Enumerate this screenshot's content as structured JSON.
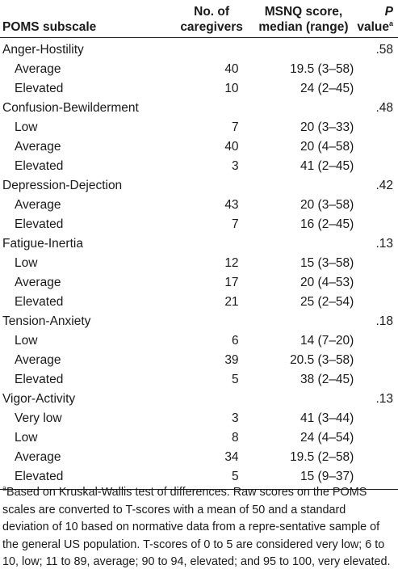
{
  "header": {
    "subscale": "POMS subscale",
    "caregivers_line1": "No. of",
    "caregivers_line2": "caregivers",
    "msnq_line1": "MSNQ score,",
    "msnq_line2": "median (range)",
    "p_italic": "P",
    "p_rest": " value",
    "p_mark": "a"
  },
  "rows": [
    {
      "label": "Anger-Hostility",
      "n": "",
      "msnq": "",
      "p": ".58",
      "sub": false
    },
    {
      "label": "Average",
      "n": "40",
      "msnq": "19.5 (3–58)",
      "p": "",
      "sub": true
    },
    {
      "label": "Elevated",
      "n": "10",
      "msnq": "24 (2–45)",
      "p": "",
      "sub": true
    },
    {
      "label": "Confusion-Bewilderment",
      "n": "",
      "msnq": "",
      "p": ".48",
      "sub": false
    },
    {
      "label": "Low",
      "n": "7",
      "msnq": "20 (3–33)",
      "p": "",
      "sub": true
    },
    {
      "label": "Average",
      "n": "40",
      "msnq": "20 (4–58)",
      "p": "",
      "sub": true
    },
    {
      "label": "Elevated",
      "n": "3",
      "msnq": "41 (2–45)",
      "p": "",
      "sub": true
    },
    {
      "label": "Depression-Dejection",
      "n": "",
      "msnq": "",
      "p": ".42",
      "sub": false
    },
    {
      "label": "Average",
      "n": "43",
      "msnq": "20 (3–58)",
      "p": "",
      "sub": true
    },
    {
      "label": "Elevated",
      "n": "7",
      "msnq": "16 (2–45)",
      "p": "",
      "sub": true
    },
    {
      "label": "Fatigue-Inertia",
      "n": "",
      "msnq": "",
      "p": ".13",
      "sub": false
    },
    {
      "label": "Low",
      "n": "12",
      "msnq": "15 (3–58)",
      "p": "",
      "sub": true
    },
    {
      "label": "Average",
      "n": "17",
      "msnq": "20 (4–53)",
      "p": "",
      "sub": true
    },
    {
      "label": "Elevated",
      "n": "21",
      "msnq": "25 (2–54)",
      "p": "",
      "sub": true
    },
    {
      "label": "Tension-Anxiety",
      "n": "",
      "msnq": "",
      "p": ".18",
      "sub": false
    },
    {
      "label": "Low",
      "n": "6",
      "msnq": "14 (7–20)",
      "p": "",
      "sub": true
    },
    {
      "label": "Average",
      "n": "39",
      "msnq": "20.5 (3–58)",
      "p": "",
      "sub": true
    },
    {
      "label": "Elevated",
      "n": "5",
      "msnq": "38 (2–45)",
      "p": "",
      "sub": true
    },
    {
      "label": "Vigor-Activity",
      "n": "",
      "msnq": "",
      "p": ".13",
      "sub": false
    },
    {
      "label": "Very low",
      "n": "3",
      "msnq": "41 (3–44)",
      "p": "",
      "sub": true
    },
    {
      "label": "Low",
      "n": "8",
      "msnq": "24 (4–54)",
      "p": "",
      "sub": true
    },
    {
      "label": "Average",
      "n": "34",
      "msnq": "19.5 (2–58)",
      "p": "",
      "sub": true
    },
    {
      "label": "Elevated",
      "n": "5",
      "msnq": "15 (9–37)",
      "p": "",
      "sub": true
    }
  ],
  "footnote": {
    "mark": "a",
    "text": "Based on Kruskal-Wallis test of differences. Raw scores on the POMS scales are converted to T-scores with a mean of 50 and a standard deviation of 10 based on normative data from a repre-sentative sample of the general US population. T-scores of 0 to 5 are considered very low; 6 to 10, low; 11 to 89, average; 90 to 94, elevated; and 95 to 100, very elevated."
  }
}
